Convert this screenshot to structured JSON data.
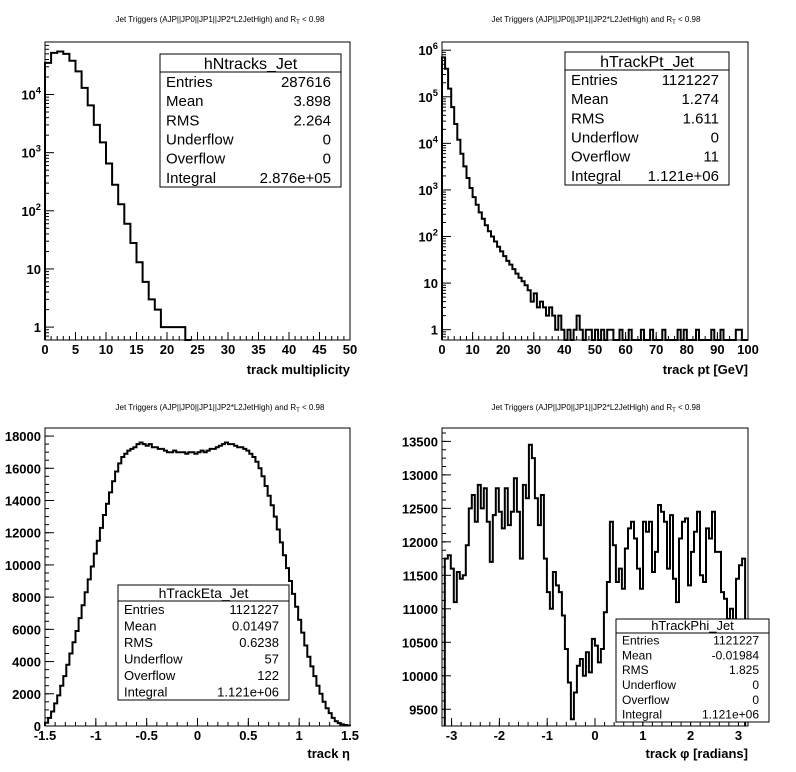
{
  "panels": [
    {
      "title_main": "Jet Triggers (AJP||JP0||JP1||JP2*L2JetHigh) and R",
      "title_sub": "T",
      "title_tail": " < 0.98",
      "stats": {
        "name": "hNtracks_Jet",
        "rows": [
          {
            "label": "Entries",
            "value": "287616"
          },
          {
            "label": "Mean",
            "value": "3.898"
          },
          {
            "label": "RMS",
            "value": "2.264"
          },
          {
            "label": "Underflow",
            "value": "0"
          },
          {
            "label": "Overflow",
            "value": "0"
          },
          {
            "label": "Integral",
            "value": "2.876e+05"
          }
        ]
      },
      "chart_data": {
        "type": "histogram",
        "xlabel": "track multiplicity",
        "xlim": [
          0,
          50
        ],
        "ylim": [
          0.6,
          80000
        ],
        "log_y": true,
        "x_ticks": [
          0,
          5,
          10,
          15,
          20,
          25,
          30,
          35,
          40,
          45,
          50
        ],
        "x_tick_labels": [
          "0",
          "5",
          "10",
          "15",
          "20",
          "25",
          "30",
          "35",
          "40",
          "45",
          "50"
        ],
        "y_ticks": [
          1,
          10,
          100,
          1000,
          10000
        ],
        "y_tick_labels": [
          "1",
          "10",
          "10^2",
          "10^3",
          "10^4"
        ],
        "bin_edges_start": 0,
        "bin_width": 1,
        "values": [
          35000,
          52000,
          55000,
          50000,
          38000,
          25000,
          13000,
          6500,
          3000,
          1500,
          650,
          280,
          130,
          60,
          28,
          13,
          6,
          3,
          2,
          1,
          1,
          1,
          1,
          0
        ]
      }
    },
    {
      "title_main": "Jet Triggers (AJP||JP0||JP1||JP2*L2JetHigh) and R",
      "title_sub": "T",
      "title_tail": " < 0.98",
      "stats": {
        "name": "hTrackPt_Jet",
        "rows": [
          {
            "label": "Entries",
            "value": "1121227"
          },
          {
            "label": "Mean",
            "value": "1.274"
          },
          {
            "label": "RMS",
            "value": "1.611"
          },
          {
            "label": "Underflow",
            "value": "0"
          },
          {
            "label": "Overflow",
            "value": "11"
          },
          {
            "label": "Integral",
            "value": "1.121e+06"
          }
        ]
      },
      "chart_data": {
        "type": "histogram",
        "xlabel": "track pt [GeV]",
        "xlim": [
          0,
          100
        ],
        "ylim": [
          0.6,
          1500000
        ],
        "log_y": true,
        "x_ticks": [
          0,
          10,
          20,
          30,
          40,
          50,
          60,
          70,
          80,
          90,
          100
        ],
        "x_tick_labels": [
          "0",
          "10",
          "20",
          "30",
          "40",
          "50",
          "60",
          "70",
          "80",
          "90",
          "100"
        ],
        "y_ticks": [
          1,
          10,
          100,
          1000,
          10000,
          100000,
          1000000
        ],
        "y_tick_labels": [
          "1",
          "10",
          "10^2",
          "10^3",
          "10^4",
          "10^5",
          "10^6"
        ],
        "bin_edges_start": 0,
        "bin_width": 1,
        "values": [
          700000,
          400000,
          150000,
          60000,
          26000,
          12000,
          6000,
          3200,
          1800,
          1100,
          700,
          480,
          330,
          240,
          175,
          130,
          100,
          78,
          60,
          48,
          38,
          30,
          25,
          20,
          16,
          13,
          11,
          9,
          7,
          4,
          6,
          3,
          4,
          3,
          2,
          3,
          2,
          1,
          2,
          1,
          0,
          1,
          0,
          1,
          2,
          1,
          0,
          1,
          1,
          0,
          1,
          0,
          1,
          0,
          1,
          1,
          0,
          0,
          1,
          0,
          0,
          1,
          0,
          0,
          0,
          1,
          0,
          0,
          1,
          0,
          0,
          0,
          1,
          0,
          0,
          0,
          0,
          1,
          0,
          1,
          0,
          0,
          0,
          1,
          0,
          0,
          0,
          0,
          1,
          0,
          0,
          1,
          0,
          0,
          0,
          0,
          1,
          1,
          0,
          0
        ]
      }
    },
    {
      "title_main": "Jet Triggers (AJP||JP0||JP1||JP2*L2JetHigh) and R",
      "title_sub": "T",
      "title_tail": " < 0.98",
      "stats": {
        "name": "hTrackEta_Jet",
        "rows": [
          {
            "label": "Entries",
            "value": "1121227"
          },
          {
            "label": "Mean",
            "value": "0.01497"
          },
          {
            "label": "RMS",
            "value": "0.6238"
          },
          {
            "label": "Underflow",
            "value": "57"
          },
          {
            "label": "Overflow",
            "value": "122"
          },
          {
            "label": "Integral",
            "value": "1.121e+06"
          }
        ]
      },
      "chart_data": {
        "type": "histogram",
        "xlabel": "track η",
        "xlim": [
          -1.5,
          1.5
        ],
        "ylim": [
          0,
          18500
        ],
        "log_y": false,
        "x_ticks": [
          -1.5,
          -1,
          -0.5,
          0,
          0.5,
          1,
          1.5
        ],
        "x_tick_labels": [
          "-1.5",
          "-1",
          "-0.5",
          "0",
          "0.5",
          "1",
          "1.5"
        ],
        "y_ticks": [
          0,
          2000,
          4000,
          6000,
          8000,
          10000,
          12000,
          14000,
          16000,
          18000
        ],
        "y_tick_labels": [
          "0",
          "2000",
          "4000",
          "6000",
          "8000",
          "10000",
          "12000",
          "14000",
          "16000",
          "18000"
        ],
        "bin_edges_start": -1.5,
        "bin_width": 0.03,
        "values": [
          200,
          500,
          900,
          1400,
          1900,
          2500,
          3100,
          3800,
          4500,
          5200,
          5900,
          6700,
          7500,
          8300,
          9100,
          9900,
          10700,
          11500,
          12300,
          13100,
          13800,
          14500,
          15200,
          15800,
          16300,
          16700,
          16900,
          17100,
          17200,
          17300,
          17500,
          17600,
          17500,
          17400,
          17500,
          17300,
          17300,
          17200,
          17200,
          17100,
          17000,
          17000,
          17100,
          17000,
          17000,
          17000,
          16900,
          17000,
          17000,
          16900,
          17000,
          17100,
          17000,
          17100,
          17200,
          17200,
          17300,
          17400,
          17500,
          17600,
          17500,
          17500,
          17400,
          17300,
          17300,
          17200,
          17100,
          16900,
          16700,
          16400,
          16000,
          15500,
          14900,
          14300,
          13700,
          13000,
          12200,
          11400,
          10600,
          9800,
          9000,
          8200,
          7400,
          6600,
          5800,
          5000,
          4300,
          3700,
          3100,
          2500,
          2000,
          1500,
          1100,
          800,
          500,
          300,
          180,
          100,
          60,
          30
        ]
      }
    },
    {
      "title_main": "Jet Triggers (AJP||JP0||JP1||JP2*L2JetHigh) and R",
      "title_sub": "T",
      "title_tail": " < 0.98",
      "stats": {
        "name": "hTrackPhi_Jet",
        "rows": [
          {
            "label": "Entries",
            "value": "1121227"
          },
          {
            "label": "Mean",
            "value": "-0.01984"
          },
          {
            "label": "RMS",
            "value": "1.825"
          },
          {
            "label": "Underflow",
            "value": "0"
          },
          {
            "label": "Overflow",
            "value": "0"
          },
          {
            "label": "Integral",
            "value": "1.121e+06"
          }
        ]
      },
      "chart_data": {
        "type": "histogram",
        "xlabel": "track φ [radians]",
        "xlim": [
          -3.2,
          3.2
        ],
        "ylim": [
          9250,
          13700
        ],
        "log_y": false,
        "x_ticks": [
          -3,
          -2,
          -1,
          0,
          1,
          2,
          3
        ],
        "x_tick_labels": [
          "-3",
          "-2",
          "-1",
          "0",
          "1",
          "2",
          "3"
        ],
        "y_ticks": [
          9500,
          10000,
          10500,
          11000,
          11500,
          12000,
          12500,
          13000,
          13500
        ],
        "y_tick_labels": [
          "9500",
          "10000",
          "10500",
          "11000",
          "11500",
          "12000",
          "12500",
          "13000",
          "13500"
        ],
        "bin_edges_start": -3.1416,
        "bin_width": 0.0628,
        "values": [
          11750,
          11800,
          11600,
          11100,
          11550,
          11450,
          11500,
          11950,
          12500,
          12700,
          12300,
          12850,
          12500,
          12800,
          12300,
          11700,
          12400,
          12800,
          12450,
          12200,
          12800,
          12250,
          12450,
          12950,
          12450,
          11750,
          12850,
          12650,
          13450,
          13250,
          12650,
          12250,
          12700,
          11750,
          11250,
          11000,
          11550,
          11350,
          11250,
          10900,
          10400,
          9900,
          9350,
          9750,
          10150,
          10250,
          10000,
          10350,
          10050,
          10550,
          10450,
          10200,
          10400,
          10950,
          11400,
          12300,
          11950,
          11400,
          11600,
          11300,
          11900,
          12200,
          12300,
          12050,
          11600,
          11300,
          12300,
          12150,
          12300,
          11550,
          11850,
          12550,
          12450,
          12300,
          11600,
          12400,
          11450,
          11100,
          12050,
          12300,
          12350,
          11350,
          11850,
          12150,
          12450,
          11500,
          11400,
          12200,
          12050,
          12450,
          11850,
          11850,
          11250,
          11150,
          10850,
          11000,
          10700,
          11450,
          11650,
          11750
        ]
      }
    }
  ]
}
